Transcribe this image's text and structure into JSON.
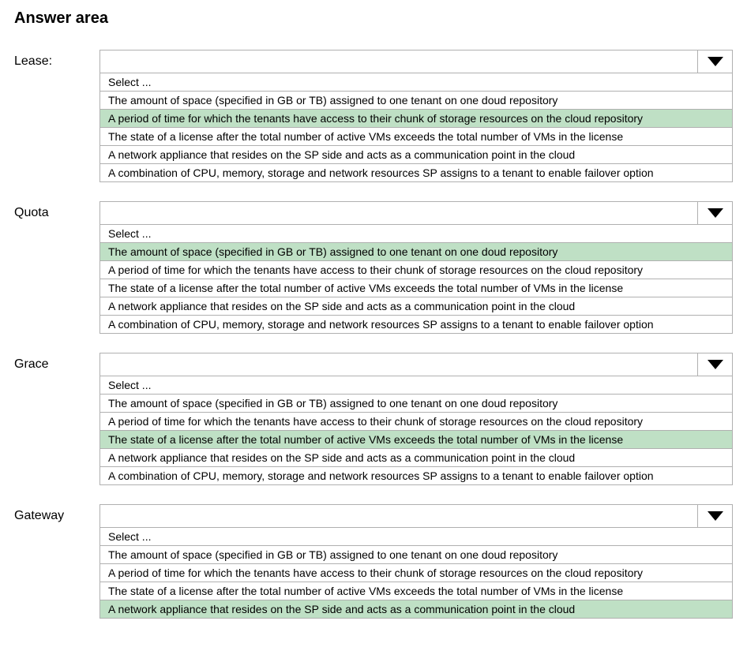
{
  "title": "Answer area",
  "options": {
    "select": "Select ...",
    "space": "The amount of space (specified in GB or TB) assigned to one tenant on one doud repository",
    "period": "A period of time for which the tenants have access to their chunk of storage resources on the cloud  repository",
    "state": "The state of a license after the total number of active VMs exceeds the total number of VMs in the license",
    "appliance": "A network appliance that resides on the SP side and acts as a communication point in the cloud",
    "combo": "A combination of CPU, memory, storage and network resources SP assigns to a tenant to enable failover option"
  },
  "highlight_color": "#bfe0c5",
  "questions": [
    {
      "id": "lease",
      "label": "Lease:",
      "highlighted": "period",
      "truncated": false
    },
    {
      "id": "quota",
      "label": "Quota",
      "highlighted": "space",
      "truncated": false
    },
    {
      "id": "grace",
      "label": "Grace",
      "highlighted": "state",
      "truncated": false
    },
    {
      "id": "gateway",
      "label": "Gateway",
      "highlighted": "appliance",
      "truncated": true
    }
  ]
}
